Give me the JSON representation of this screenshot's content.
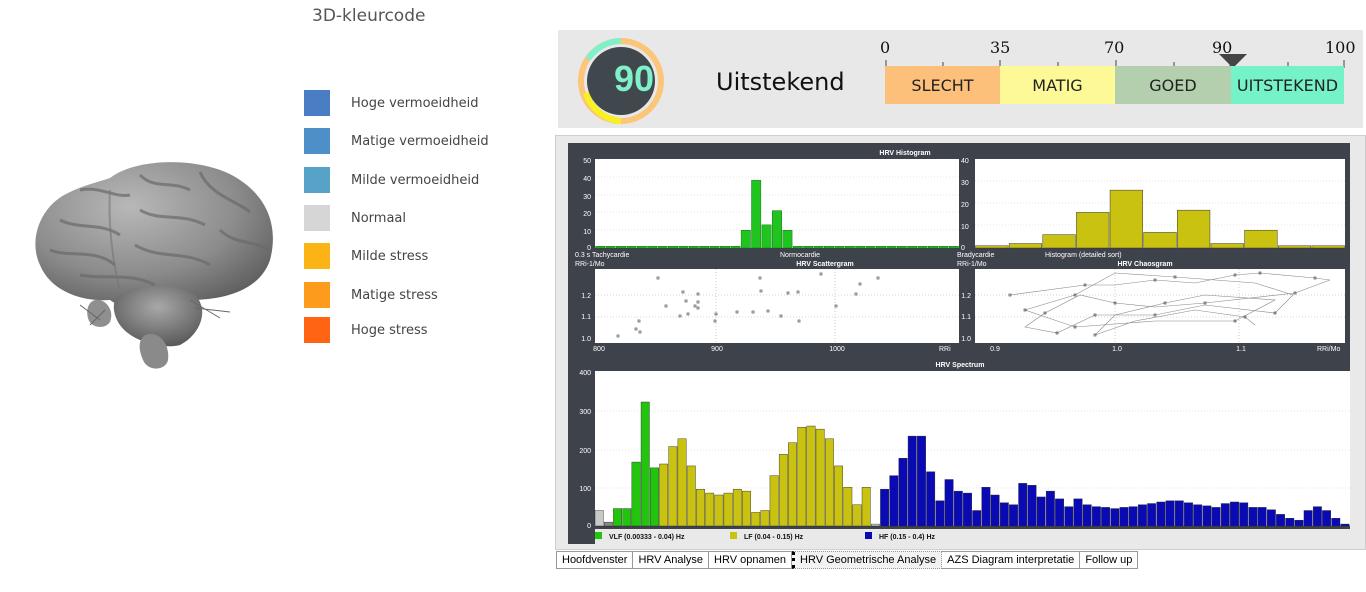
{
  "legend": {
    "title": "3D-kleurcode",
    "items": [
      {
        "label": "Hoge vermoeidheid",
        "color": "#4a7ec4"
      },
      {
        "label": "Matige vermoeidheid",
        "color": "#4f8fc8"
      },
      {
        "label": "Milde vermoeidheid",
        "color": "#57a3c8"
      },
      {
        "label": "Normaal",
        "color": "#d6d6d6"
      },
      {
        "label": "Milde stress",
        "color": "#fbb416"
      },
      {
        "label": "Matige stress",
        "color": "#fd9c1c"
      },
      {
        "label": "Hoge stress",
        "color": "#fe6413"
      }
    ]
  },
  "score": {
    "value": "90",
    "label": "Uitstekend",
    "scale_numbers": [
      "0",
      "35",
      "70",
      "90",
      "100"
    ],
    "segments": [
      {
        "label": "SLECHT",
        "color": "#fcc07a"
      },
      {
        "label": "MATIG",
        "color": "#fcf996"
      },
      {
        "label": "GOED",
        "color": "#b3cfae"
      },
      {
        "label": "UITSTEKEND",
        "color": "#75f2c7"
      }
    ]
  },
  "charts": {
    "histogram": {
      "title": "HRV Histogram",
      "left_yticks": [
        "50",
        "40",
        "30",
        "20",
        "10",
        "0"
      ],
      "right_yticks": [
        "40",
        "30",
        "20",
        "10",
        "0"
      ],
      "left_bars": [
        1,
        1,
        1,
        1,
        1,
        1,
        1,
        1,
        1,
        1,
        1,
        1,
        1,
        1,
        10,
        38,
        13,
        21,
        10,
        1,
        1,
        1,
        1,
        1,
        1,
        1,
        1,
        1,
        1,
        1,
        1,
        1,
        1,
        1,
        1
      ],
      "right_bars": [
        1,
        2,
        6,
        16,
        26,
        7,
        17,
        2,
        8,
        1,
        1
      ],
      "labels": [
        "0.3 s Tachycardie",
        "Normocardie",
        "Bradycardie",
        "Histogram (detailed sort)"
      ]
    },
    "scattergram": {
      "title": "HRV Scattergram",
      "ylabel": "RRi-1/Mo",
      "yticks": [
        "1.2",
        "1.1",
        "1.0"
      ],
      "xticks": [
        "800",
        "900",
        "1000",
        "RRi"
      ]
    },
    "chaosgram": {
      "title": "HRV Chaosgram",
      "ylabel": "RRi-1/Mo",
      "yticks": [
        "1.2",
        "1.1",
        "1.0"
      ],
      "xticks": [
        "0.9",
        "1.0",
        "1.1",
        "RRi/Mo"
      ]
    },
    "spectrum": {
      "title": "HRV Spectrum",
      "yticks": [
        "400",
        "300",
        "200",
        "100",
        "0"
      ],
      "legend": [
        {
          "label": "VLF (0.00333 - 0.04) Hz",
          "color": "#22c40e"
        },
        {
          "label": "LF (0.04 - 0.15) Hz",
          "color": "#c9c210"
        },
        {
          "label": "HF (0.15 - 0.4) Hz",
          "color": "#0a0ab4"
        }
      ]
    }
  },
  "tabs": [
    {
      "label": "Hoofdvenster"
    },
    {
      "label": "HRV Analyse"
    },
    {
      "label": "HRV opnamen"
    },
    {
      "label": "HRV Geometrische Analyse"
    },
    {
      "label": "AZS Diagram interpretatie"
    },
    {
      "label": "Follow up"
    }
  ]
}
